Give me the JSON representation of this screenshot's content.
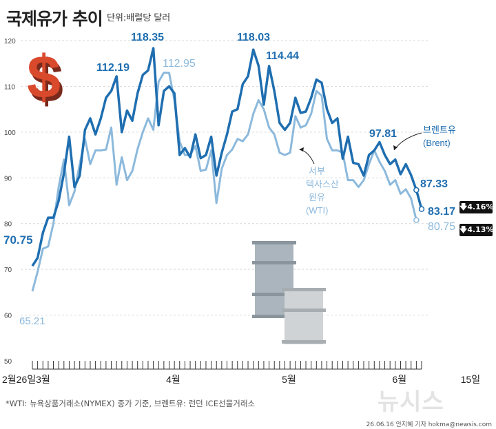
{
  "header": {
    "title": "국제유가 추이",
    "unit": "단위:배럴당 달러"
  },
  "footnote": "*WTI: 뉴욕상품거래소(NYMEX) 종가 기준, 브렌트유: 런던 ICE선물거래소",
  "credit": "26.06.16 안지혜 기자 hokma@newsis.com",
  "logo": "뉴시스",
  "colors": {
    "brent": "#1f6eb0",
    "wti": "#8cb9dc",
    "text": "#222222",
    "axis": "#333333"
  },
  "icons": [
    "dollar-icon",
    "oil-barrel-icon"
  ],
  "changes": {
    "brent": "4.16%",
    "wti": "4.13%"
  },
  "chart_data": {
    "type": "line",
    "ylim": [
      50,
      120
    ],
    "yticks": [
      50,
      60,
      70,
      80,
      90,
      100,
      110,
      120
    ],
    "grid": true,
    "x_labels": [
      "2월26일",
      "3월",
      "4월",
      "5월",
      "6월",
      "15일"
    ],
    "x_label_index": [
      0,
      3,
      27,
      49,
      70,
      83
    ],
    "series": [
      {
        "name": "브렌트유 (Brent)",
        "color": "#1f6eb0",
        "values": [
          70.75,
          72.5,
          78,
          81.3,
          81.3,
          85,
          91,
          99,
          88,
          90.5,
          100.5,
          103,
          99.5,
          103,
          107.5,
          109,
          112.19,
          100,
          104.7,
          102.5,
          108.5,
          112.5,
          113.5,
          118.35,
          101.5,
          109,
          110,
          108.5,
          95,
          96.5,
          94.5,
          99.5,
          94.3,
          95,
          99,
          90.5,
          95.5,
          99.5,
          104.5,
          105,
          110.5,
          112.2,
          118.03,
          114.5,
          106,
          114.44,
          109,
          102,
          100.5,
          102,
          107.5,
          104.2,
          104.5,
          107.5,
          111.5,
          110.8,
          105,
          102,
          103,
          94.2,
          99,
          93.3,
          93,
          90.5,
          95,
          96,
          97.81,
          95,
          93,
          94,
          90.8,
          93,
          90.6,
          87.33,
          83.17
        ]
      },
      {
        "name": "서부텍사스산 원유 (WTI)",
        "color": "#8cb9dc",
        "values": [
          65.21,
          69.5,
          74.5,
          75,
          80,
          88,
          94,
          84,
          87,
          93,
          98.5,
          93,
          96,
          96,
          96.2,
          101,
          88.5,
          94.5,
          89.5,
          91.5,
          96.3,
          100,
          103,
          100.5,
          111,
          113,
          112.95,
          107,
          98,
          95,
          95,
          97,
          91.5,
          91.8,
          96,
          84.5,
          92,
          95,
          96.2,
          98.5,
          98,
          99.5,
          104,
          107,
          105,
          101,
          99.5,
          95.5,
          95,
          95.5,
          103.5,
          101,
          101.5,
          104,
          109,
          108,
          98.5,
          96,
          96,
          95.5,
          89.5,
          89.5,
          88,
          89.5,
          93,
          96,
          93.5,
          91.5,
          88.5,
          89.5,
          86.5,
          87.5,
          85.5,
          80.75
        ]
      }
    ],
    "annotations": [
      "118.35",
      "112.19",
      "112.95",
      "118.03",
      "114.44",
      "97.81",
      "87.33",
      "83.17",
      "80.75",
      "70.75",
      "65.21"
    ],
    "labels": {
      "brent_line1": "브렌트유",
      "brent_line2": "(Brent)",
      "wti_line1": "서부",
      "wti_line2": "텍사스산",
      "wti_line3": "원유",
      "wti_line4": "(WTI)"
    }
  }
}
